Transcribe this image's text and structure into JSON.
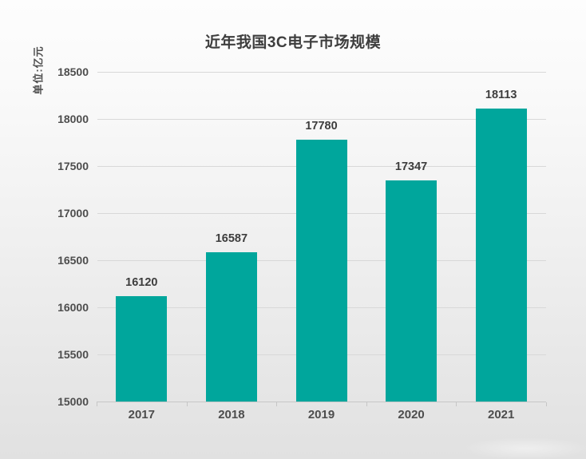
{
  "chart_data": {
    "type": "bar",
    "title": "近年我国3C电子市场规模",
    "categories": [
      "2017",
      "2018",
      "2019",
      "2020",
      "2021"
    ],
    "values": [
      16120,
      16587,
      17780,
      17347,
      18113
    ],
    "xlabel": "",
    "ylabel": "单位:亿元",
    "ylim": [
      15000,
      18500
    ],
    "y_ticks": [
      15000,
      15500,
      16000,
      16500,
      17000,
      17500,
      18000,
      18500
    ],
    "grid": true,
    "legend": false,
    "bar_color": "#00a69c",
    "grid_color": "#d8d8d8",
    "axis_color": "#c6c6c6",
    "title_color": "#3e3e3e",
    "value_label_color": "#3d3d3d",
    "tick_label_color": "#4d4d4d"
  }
}
